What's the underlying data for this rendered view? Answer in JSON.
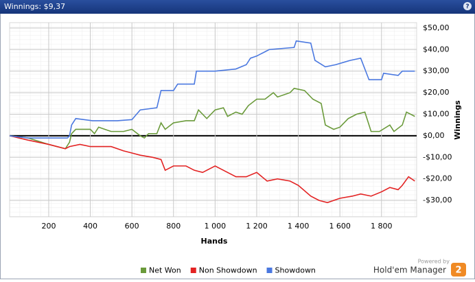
{
  "header": {
    "title": "Winnings: $9,37"
  },
  "branding": {
    "powered_by": "Powered by",
    "product": "Hold'em Manager",
    "logo": "2"
  },
  "chart_data": {
    "type": "line",
    "xlabel": "Hands",
    "ylabel": "Winnings",
    "xlim": [
      12,
      1969
    ],
    "ylim": [
      -37.6,
      52.5
    ],
    "grid": true,
    "legend": "bottom",
    "zero_line": true,
    "xticks": [
      200,
      400,
      600,
      800,
      {
        "value": 1000,
        "label": "1 000"
      },
      {
        "value": 1200,
        "label": "1 200"
      },
      {
        "value": 1400,
        "label": "1 400"
      },
      {
        "value": 1600,
        "label": "1 600"
      },
      {
        "value": 1800,
        "label": "1 800"
      }
    ],
    "yticks": [
      {
        "value": -30,
        "label": "-$30,00"
      },
      {
        "value": -20,
        "label": "-$20,00"
      },
      {
        "value": -10,
        "label": "-$10,00"
      },
      {
        "value": 0,
        "label": "$0,00"
      },
      {
        "value": 10,
        "label": "$10,00"
      },
      {
        "value": 20,
        "label": "$20,00"
      },
      {
        "value": 30,
        "label": "$30,00"
      },
      {
        "value": 40,
        "label": "$40,00"
      },
      {
        "value": 50,
        "label": "$50,00"
      }
    ],
    "series": [
      {
        "name": "Net Won",
        "color": "#6a9a3a",
        "x": [
          12,
          100,
          200,
          280,
          300,
          310,
          330,
          400,
          420,
          440,
          500,
          560,
          600,
          640,
          660,
          680,
          720,
          740,
          760,
          800,
          860,
          900,
          920,
          960,
          1000,
          1040,
          1060,
          1100,
          1130,
          1160,
          1200,
          1240,
          1280,
          1300,
          1360,
          1380,
          1430,
          1470,
          1510,
          1530,
          1570,
          1600,
          1640,
          1680,
          1720,
          1750,
          1790,
          1840,
          1860,
          1900,
          1920,
          1960
        ],
        "values": [
          0,
          -1,
          -4,
          -6,
          -3,
          1,
          3,
          3,
          1,
          4,
          2,
          2,
          3,
          0,
          -1,
          1,
          1,
          6,
          3,
          6,
          7,
          7,
          12,
          8,
          12,
          13,
          9,
          11,
          10,
          14,
          17,
          17,
          20,
          18,
          20,
          22,
          21,
          17,
          15,
          5,
          3,
          4,
          8,
          10,
          11,
          2,
          2,
          5,
          2,
          5,
          11,
          9
        ]
      },
      {
        "name": "Non Showdown",
        "color": "#e32222",
        "x": [
          12,
          100,
          200,
          280,
          300,
          350,
          400,
          500,
          560,
          600,
          640,
          700,
          740,
          760,
          800,
          860,
          900,
          940,
          1000,
          1040,
          1080,
          1100,
          1150,
          1200,
          1250,
          1300,
          1360,
          1400,
          1460,
          1500,
          1540,
          1600,
          1660,
          1700,
          1750,
          1800,
          1840,
          1880,
          1900,
          1930,
          1960
        ],
        "values": [
          0,
          -2,
          -4,
          -6,
          -5,
          -4,
          -5,
          -5,
          -7,
          -8,
          -9,
          -10,
          -11,
          -16,
          -14,
          -14,
          -16,
          -17,
          -14,
          -16,
          -18,
          -19,
          -19,
          -17,
          -21,
          -20,
          -21,
          -23,
          -28,
          -30,
          -31,
          -29,
          -28,
          -27,
          -28,
          -26,
          -24,
          -25,
          -23,
          -19,
          -21
        ]
      },
      {
        "name": "Showdown",
        "color": "#4a78e0",
        "x": [
          12,
          100,
          290,
          300,
          310,
          330,
          410,
          530,
          600,
          640,
          720,
          740,
          800,
          820,
          900,
          910,
          1000,
          1100,
          1150,
          1170,
          1200,
          1260,
          1380,
          1390,
          1460,
          1480,
          1530,
          1580,
          1650,
          1700,
          1740,
          1800,
          1810,
          1880,
          1900,
          1960
        ],
        "values": [
          0,
          -1,
          -1,
          0,
          5,
          8,
          7,
          7,
          7.5,
          12,
          13,
          21,
          21,
          24,
          24,
          30,
          30,
          31,
          33,
          36,
          37,
          40,
          41,
          44,
          43,
          35,
          32,
          33,
          35,
          36,
          26,
          26,
          29,
          28,
          30,
          30
        ]
      }
    ]
  }
}
